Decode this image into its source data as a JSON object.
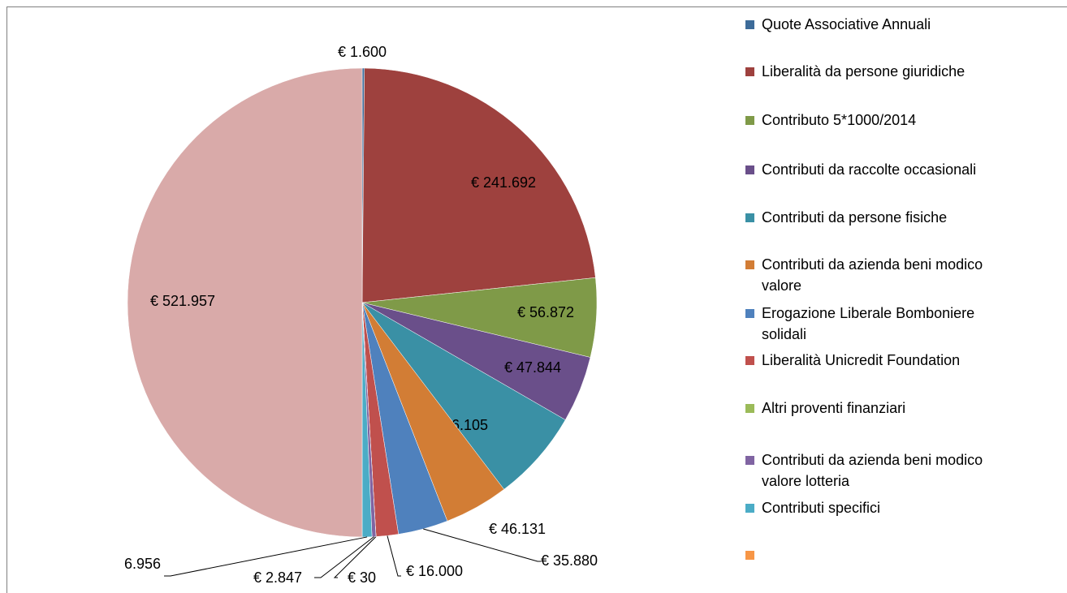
{
  "chart_data": {
    "type": "pie",
    "categories": [
      "Quote Associative Annuali",
      "Liberalità da persone giuridiche",
      "Contributo 5*1000/2014",
      "Contributi da raccolte occasionali",
      "Contributi da persone fisiche",
      "Contributi da azienda beni modico valore",
      "Erogazione Liberale Bomboniere solidali",
      "Liberalità Unicredit Foundation",
      "Altri proventi finanziari",
      "Contributi da azienda beni modico valore lotteria",
      "Contributi specifici",
      null,
      null
    ],
    "values": [
      1600,
      241692,
      56872,
      47844,
      66105,
      46131,
      35880,
      16000,
      30,
      2847,
      6956,
      null,
      521957
    ],
    "value_labels": [
      "€ 1.600",
      "€ 241.692",
      "€ 56.872",
      "€ 47.844",
      "€ 66.105",
      "€ 46.131",
      "€ 35.880",
      "€ 16.000",
      "€ 30",
      "€ 2.847",
      "6.956",
      null,
      "€ 521.957"
    ],
    "colors": [
      "#3d6b99",
      "#9e413e",
      "#7f9a48",
      "#6a4f8a",
      "#3a90a5",
      "#d27d35",
      "#4f81bd",
      "#c0504d",
      "#9bbb59",
      "#8064a2",
      "#4bacc6",
      "#f79646",
      "#d9aaa9"
    ],
    "legend": "right"
  }
}
